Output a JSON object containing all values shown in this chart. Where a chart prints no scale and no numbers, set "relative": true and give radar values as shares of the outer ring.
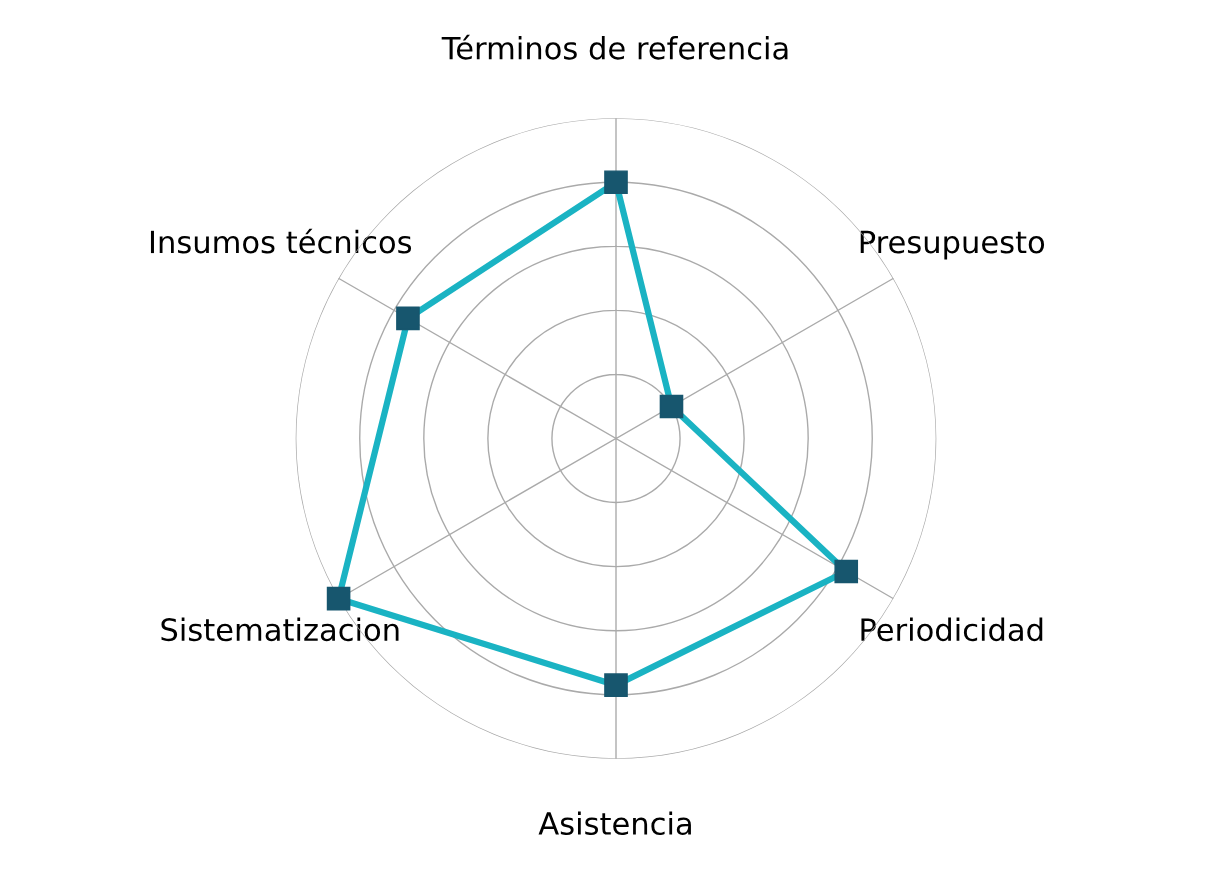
{
  "chart_data": {
    "type": "radar",
    "relative": true,
    "grid": true,
    "marker": "square",
    "line_style": "solid",
    "categories": [
      "Términos de referencia",
      "Presupuesto",
      "Periodicidad",
      "Asistencia",
      "Sistematizacion",
      "Insumos técnicos"
    ],
    "series": [
      {
        "color": "#1ab3c3",
        "values": [
          0.8,
          0.2,
          0.83,
          0.77,
          1.0,
          0.75
        ]
      }
    ]
  }
}
